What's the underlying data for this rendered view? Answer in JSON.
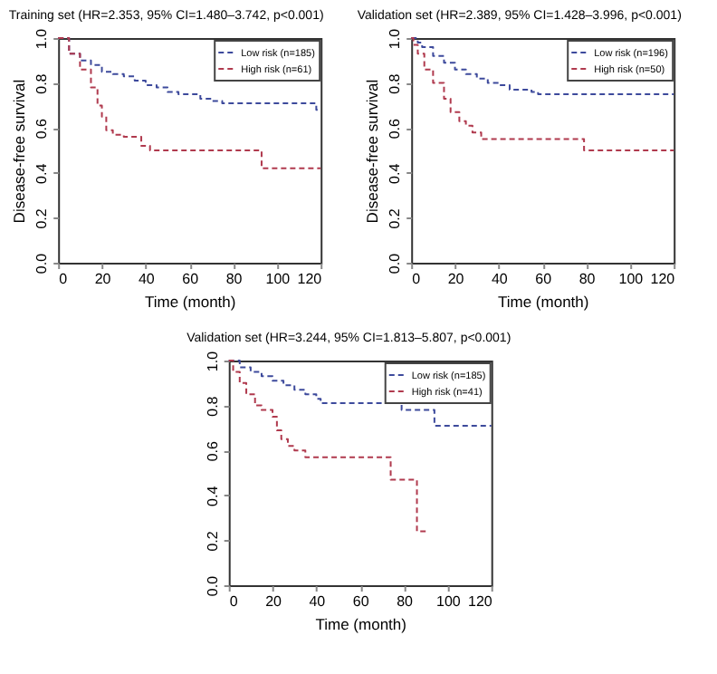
{
  "chart_data": [
    {
      "type": "step",
      "title": "Training set (HR=2.353, 95% CI=1.480–3.742, p<0.001)",
      "xlabel": "Time (month)",
      "ylabel": "Disease-free survival",
      "xlim": [
        0,
        120
      ],
      "xticks": [
        0,
        20,
        40,
        60,
        80,
        100,
        120
      ],
      "ylim": [
        0,
        1
      ],
      "yticks": [
        {
          "value": 0,
          "label": "0.0"
        },
        {
          "value": 0.2,
          "label": "0.2"
        },
        {
          "value": 0.4,
          "label": "0.4"
        },
        {
          "value": 0.6,
          "label": "0.6"
        },
        {
          "value": 0.8,
          "label": "0.8"
        },
        {
          "value": 1,
          "label": "1.0"
        }
      ],
      "legend": "top right",
      "line_style": "dashed",
      "grid": false,
      "series": [
        {
          "name": "Low risk (n=185)",
          "color": "#3d4a9c",
          "x": [
            0,
            5,
            10,
            15,
            20,
            25,
            30,
            35,
            40,
            45,
            50,
            55,
            60,
            65,
            70,
            75,
            80,
            118,
            120
          ],
          "values": [
            1.0,
            0.93,
            0.9,
            0.88,
            0.85,
            0.84,
            0.83,
            0.81,
            0.79,
            0.78,
            0.76,
            0.75,
            0.75,
            0.73,
            0.72,
            0.71,
            0.71,
            0.68,
            0.68
          ]
        },
        {
          "name": "High risk (n=61)",
          "color": "#b03a4e",
          "x": [
            0,
            5,
            10,
            15,
            18,
            20,
            22,
            25,
            30,
            35,
            38,
            42,
            93,
            120
          ],
          "values": [
            1.0,
            0.93,
            0.86,
            0.78,
            0.7,
            0.65,
            0.59,
            0.57,
            0.56,
            0.56,
            0.52,
            0.5,
            0.42,
            0.42
          ]
        }
      ]
    },
    {
      "type": "step",
      "title": "Validation set (HR=2.389, 95% CI=1.428–3.996, p<0.001)",
      "xlabel": "Time (month)",
      "ylabel": "Disease-free survival",
      "xlim": [
        0,
        120
      ],
      "xticks": [
        0,
        20,
        40,
        60,
        80,
        100,
        120
      ],
      "ylim": [
        0,
        1
      ],
      "yticks": [
        {
          "value": 0,
          "label": "0.0"
        },
        {
          "value": 0.2,
          "label": "0.2"
        },
        {
          "value": 0.4,
          "label": "0.4"
        },
        {
          "value": 0.6,
          "label": "0.6"
        },
        {
          "value": 0.8,
          "label": "0.8"
        },
        {
          "value": 1,
          "label": "1.0"
        }
      ],
      "legend": "top right",
      "line_style": "dashed",
      "grid": false,
      "series": [
        {
          "name": "Low risk (n=196)",
          "color": "#3d4a9c",
          "x": [
            0,
            3,
            5,
            10,
            15,
            20,
            25,
            30,
            35,
            40,
            45,
            55,
            58,
            120
          ],
          "values": [
            1.0,
            0.98,
            0.96,
            0.92,
            0.89,
            0.86,
            0.84,
            0.82,
            0.8,
            0.79,
            0.77,
            0.76,
            0.75,
            0.75
          ]
        },
        {
          "name": "High risk (n=50)",
          "color": "#b03a4e",
          "x": [
            0,
            1,
            3,
            6,
            10,
            15,
            18,
            22,
            25,
            28,
            32,
            79,
            120
          ],
          "values": [
            1.0,
            0.97,
            0.93,
            0.86,
            0.8,
            0.73,
            0.67,
            0.63,
            0.61,
            0.58,
            0.55,
            0.5,
            0.5
          ]
        }
      ]
    },
    {
      "type": "step",
      "title": "Validation set (HR=3.244, 95% CI=1.813–5.807, p<0.001)",
      "xlabel": "Time (month)",
      "xlim": [
        0,
        120
      ],
      "xticks": [
        0,
        20,
        40,
        60,
        80,
        100,
        120
      ],
      "ylim": [
        0,
        1
      ],
      "yticks": [
        {
          "value": 0,
          "label": "0.0"
        },
        {
          "value": 0.2,
          "label": "0.2"
        },
        {
          "value": 0.4,
          "label": "0.4"
        },
        {
          "value": 0.6,
          "label": "0.6"
        },
        {
          "value": 0.8,
          "label": "0.8"
        },
        {
          "value": 1,
          "label": "1.0"
        }
      ],
      "legend": "top right",
      "line_style": "dashed",
      "grid": false,
      "series": [
        {
          "name": "Low risk (n=185)",
          "color": "#3d4a9c",
          "x": [
            0,
            5,
            10,
            15,
            20,
            25,
            30,
            35,
            40,
            42,
            79,
            94,
            120
          ],
          "values": [
            1.0,
            0.97,
            0.95,
            0.93,
            0.91,
            0.89,
            0.87,
            0.85,
            0.83,
            0.81,
            0.78,
            0.71,
            0.71
          ]
        },
        {
          "name": "High risk (n=41)",
          "color": "#b03a4e",
          "x": [
            0,
            2,
            5,
            8,
            12,
            15,
            20,
            22,
            24,
            27,
            30,
            35,
            74,
            86,
            90
          ],
          "values": [
            1.0,
            0.95,
            0.9,
            0.85,
            0.8,
            0.78,
            0.75,
            0.69,
            0.65,
            0.62,
            0.6,
            0.57,
            0.47,
            0.24,
            0.24
          ]
        }
      ]
    }
  ]
}
